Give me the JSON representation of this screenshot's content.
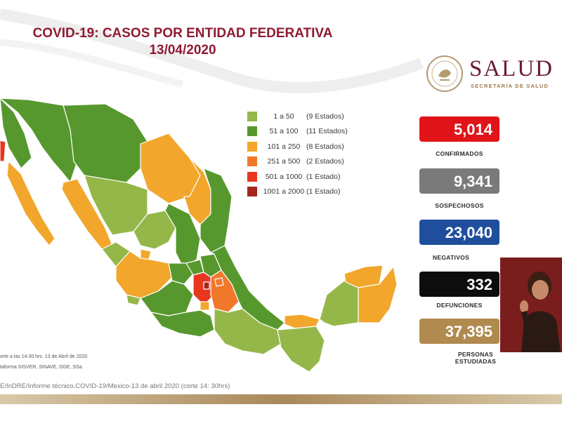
{
  "title": {
    "line1": "COVID-19: CASOS POR ENTIDAD FEDERATIVA",
    "line2": "13/04/2020"
  },
  "legend": [
    {
      "range": "1 a 50",
      "count": "(9 Estados)",
      "color": "#95b749"
    },
    {
      "range": "51 a 100",
      "count": "(11 Estados)",
      "color": "#57982e"
    },
    {
      "range": "101 a 250",
      "count": "(8 Estados)",
      "color": "#f2a62b"
    },
    {
      "range": "251 a 500",
      "count": "(2 Estados)",
      "color": "#f1782a"
    },
    {
      "range": "501 a 1000",
      "count": "(1 Estado)",
      "color": "#e8371f"
    },
    {
      "range": "1001 a 2000",
      "count": "(1 Estado)",
      "color": "#a4261c"
    }
  ],
  "logo": {
    "name": "SALUD",
    "subtitle": "SECRETARÍA DE SALUD"
  },
  "stats": [
    {
      "value": "5,014",
      "label": "CONFIRMADOS",
      "color": "#e1141a"
    },
    {
      "value": "9,341",
      "label": "SOSPECHOSOS",
      "color": "#7a7a7a"
    },
    {
      "value": "23,040",
      "label": "NEGATIVOS",
      "color": "#1f4f9c"
    },
    {
      "value": "332",
      "label": "DEFUNCIONES",
      "color": "#0d0d0d"
    },
    {
      "value": "37,395",
      "label_line1": "PERSONAS",
      "label_line2": "ESTUDIADAS",
      "color": "#b08a4e"
    }
  ],
  "footnotes": {
    "line1": "orte a las 14:30 hrs. 13 de Abril de 2020",
    "line2": "taforma SISVER, SINAVE, DGE, SSa.",
    "source": "E/InDRE/Informe técnico.COVID-19/Mexico-13 de abril 2020 (corte 14: 30hrs)"
  }
}
